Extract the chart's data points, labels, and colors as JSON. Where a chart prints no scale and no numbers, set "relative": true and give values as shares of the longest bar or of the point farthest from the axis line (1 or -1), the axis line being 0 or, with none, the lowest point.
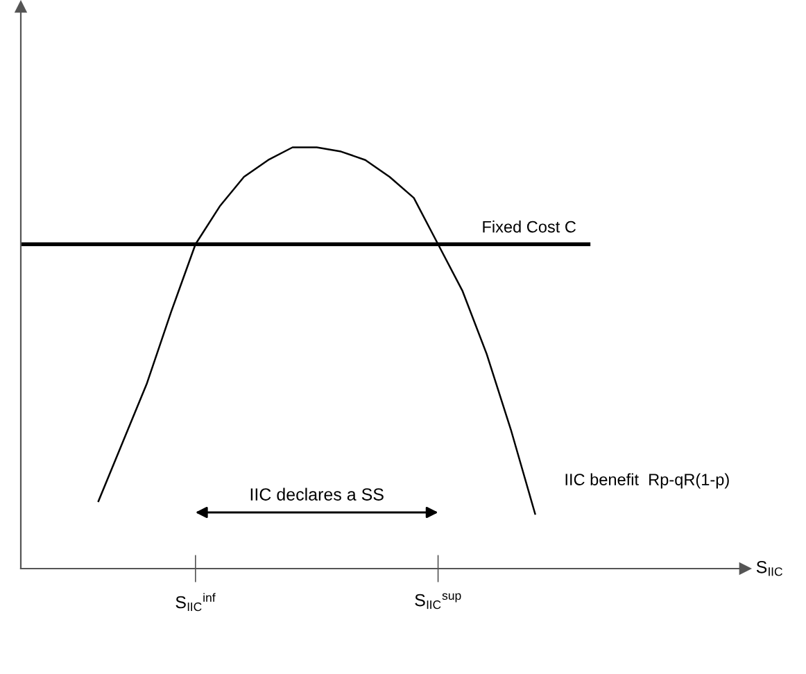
{
  "chart_data": {
    "type": "line",
    "relative": true,
    "xlabel": "S$_{IIC}$",
    "categories": [
      null,
      null,
      null,
      null,
      null,
      null,
      null,
      "S$_{IIC}$$^{inf}$",
      null,
      null,
      null,
      null,
      null,
      null,
      null,
      null,
      null,
      "S$_{IIC}$$^{sup}$",
      null,
      null,
      null,
      null,
      null,
      null,
      null,
      null,
      null,
      null,
      null,
      null
    ],
    "series": [
      {
        "name": "IIC benefit  Rp-qR(1-p)",
        "color": "#000000",
        "values": [
          null,
          null,
          null,
          0.16,
          0.3,
          0.44,
          0.61,
          0.77,
          0.86,
          0.93,
          0.97,
          1.0,
          1.0,
          0.99,
          0.97,
          0.93,
          0.88,
          0.77,
          0.66,
          0.51,
          0.33,
          0.13,
          null,
          null,
          null,
          null,
          null,
          null,
          null,
          null
        ]
      }
    ],
    "ref_lines": [
      {
        "axis": "y",
        "value": 0.77,
        "label": "Fixed Cost C",
        "color": "#000000"
      }
    ],
    "annotations": [
      "IIC declares a SS"
    ],
    "marker": "none",
    "line_style": "solid",
    "grid": false,
    "legend": false
  }
}
